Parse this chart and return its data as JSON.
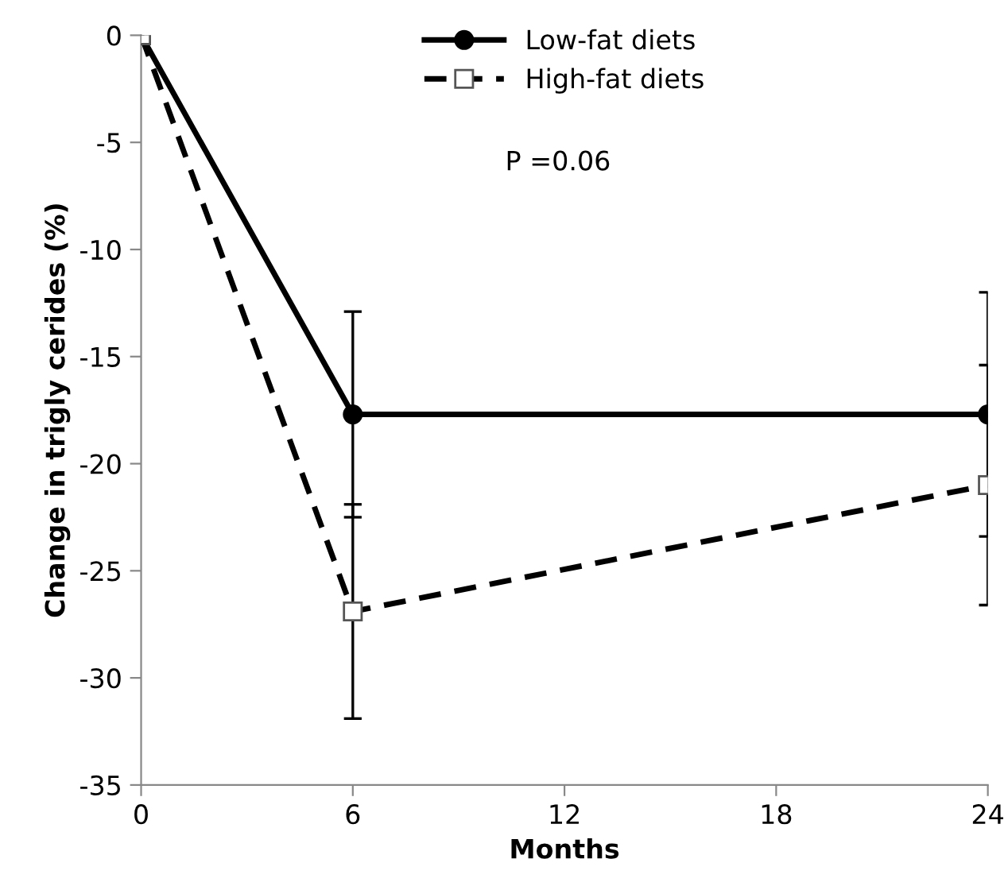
{
  "chart_data": {
    "type": "line",
    "xlabel": "Months",
    "ylabel": "Change in trigly cerides (%)",
    "x": [
      0,
      6,
      24
    ],
    "xlim": [
      0,
      24
    ],
    "xticks": [
      0,
      6,
      12,
      18,
      24
    ],
    "ylim": [
      -35,
      0
    ],
    "yticks": [
      -35,
      -30,
      -25,
      -20,
      -15,
      -10,
      -5,
      0
    ],
    "series": [
      {
        "name": "Low-fat diets",
        "color": "#000000",
        "values": [
          0,
          -17.7,
          -17.7
        ],
        "errors": [
          null,
          4.8,
          5.7
        ],
        "marker": "circle",
        "line_style": "solid"
      },
      {
        "name": "High-fat diets",
        "color": "#000000",
        "values": [
          0,
          -26.9,
          -21.0
        ],
        "errors": [
          null,
          5.0,
          5.6
        ],
        "marker": "square",
        "line_style": "dashed"
      }
    ],
    "annotations": [
      "P =0.06"
    ],
    "legend": "top",
    "grid": false
  }
}
